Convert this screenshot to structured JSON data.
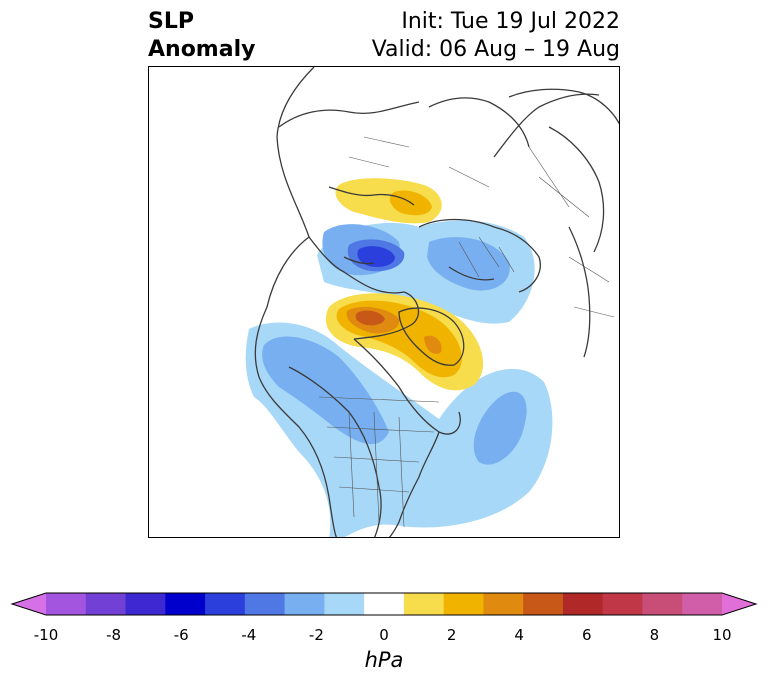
{
  "title": {
    "left_line1": "SLP",
    "left_line2": "Anomaly",
    "right_line1": "Init: Tue 19 Jul 2022",
    "right_line2": "Valid: 06 Aug – 19 Aug"
  },
  "colorbar": {
    "units": "hPa",
    "ticks": [
      "-10",
      "-8",
      "-6",
      "-4",
      "-2",
      "0",
      "2",
      "4",
      "6",
      "8",
      "10"
    ],
    "colors": [
      "#d670e6",
      "#a355e0",
      "#7340d6",
      "#3d28d2",
      "#0000cc",
      "#2a3fdc",
      "#4f78e4",
      "#78aff0",
      "#a8d8f8",
      "#ffffff",
      "#f7dc4c",
      "#f0b400",
      "#e08a10",
      "#c85818",
      "#b02828",
      "#c03848",
      "#c84e78",
      "#d05ea8",
      "#e070d8"
    ]
  },
  "legend_colors": {
    "neg_strong": "#2a3fdc",
    "neg_mid": "#78aff0",
    "neg_light": "#a8d8f8",
    "pos_light": "#f7dc4c",
    "pos_mid": "#f0b400",
    "pos_strong": "#e08a10",
    "pos_max": "#c85818"
  }
}
